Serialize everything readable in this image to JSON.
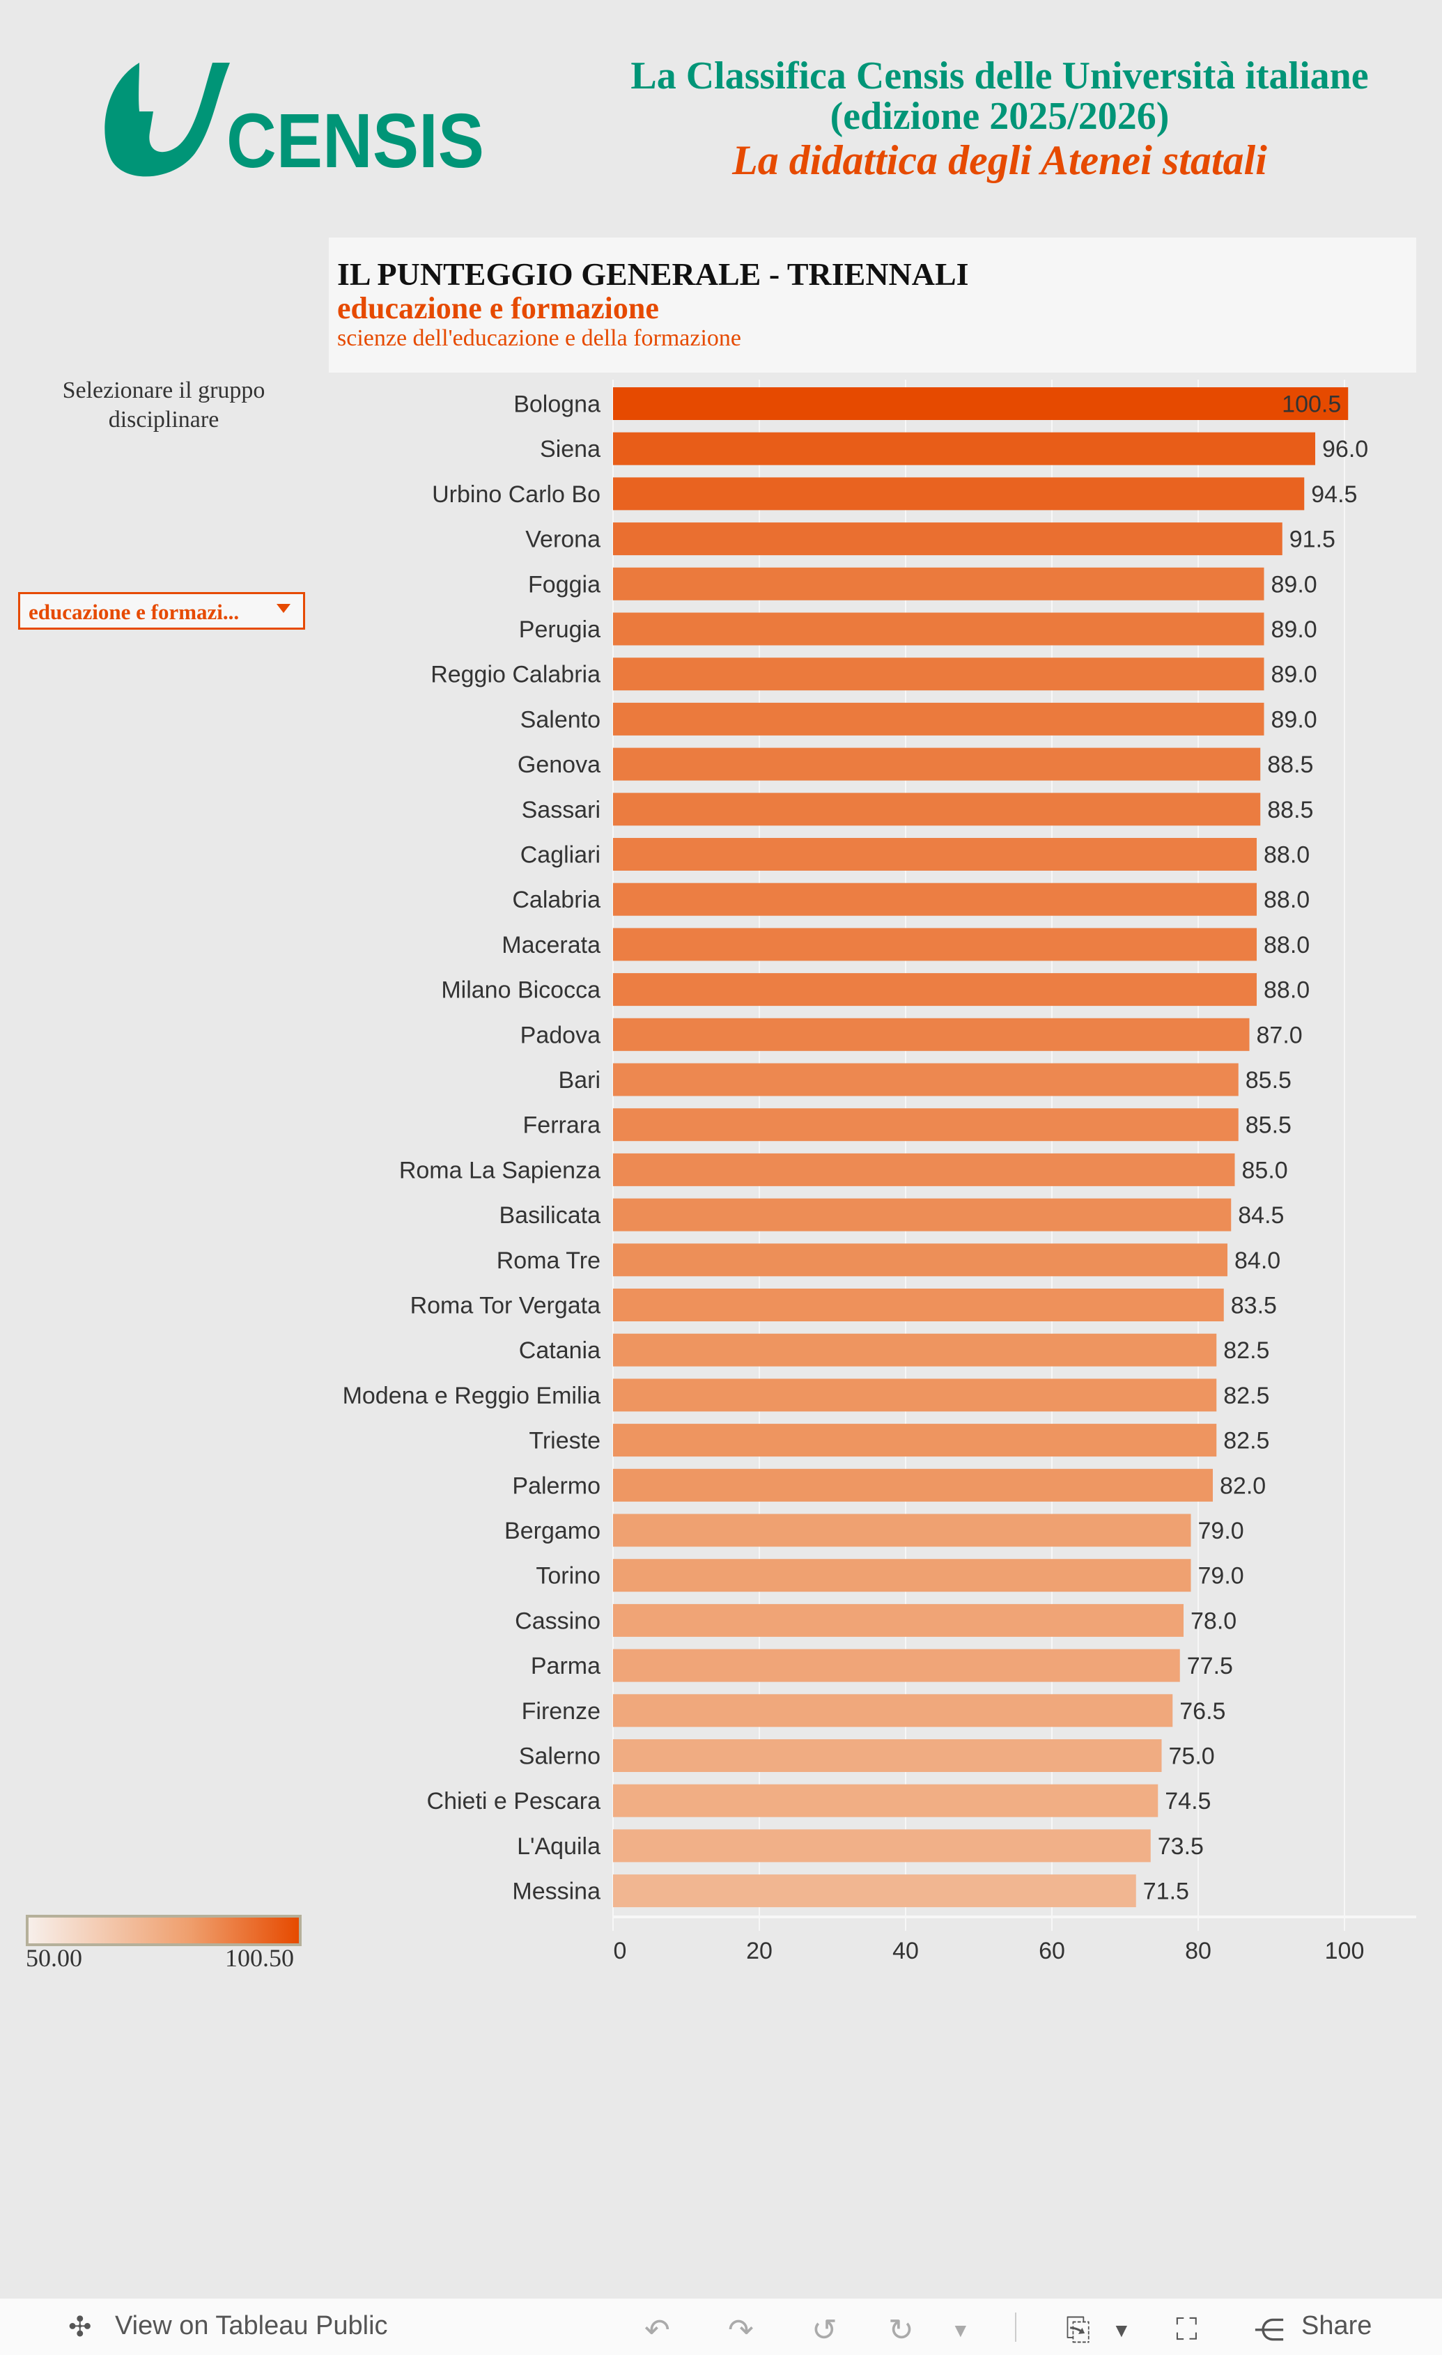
{
  "header": {
    "logo_text": "CENSIS",
    "title_line1": "La Classifica Censis delle Università italiane",
    "title_line2": "(edizione 2025/2026)",
    "subtitle": "La didattica degli Atenei statali"
  },
  "chart_header": {
    "title": "IL PUNTEGGIO GENERALE - TRIENNALI",
    "group": "educazione e formazione",
    "class": "scienze dell'educazione e della formazione"
  },
  "filter": {
    "label": "Selezionare il gruppo disciplinare",
    "selected": "educazione e formazi..."
  },
  "legend": {
    "min_label": "50.00",
    "max_label": "100.50",
    "min": 50,
    "max": 100.5,
    "color_low": "#f7efea",
    "color_high": "#e64a00"
  },
  "colors": {
    "teal": "#009577",
    "orange": "#e64a00"
  },
  "chart_data": {
    "type": "bar",
    "orientation": "horizontal",
    "categories": [
      "Bologna",
      "Siena",
      "Urbino Carlo Bo",
      "Verona",
      "Foggia",
      "Perugia",
      "Reggio Calabria",
      "Salento",
      "Genova",
      "Sassari",
      "Cagliari",
      "Calabria",
      "Macerata",
      "Milano Bicocca",
      "Padova",
      "Bari",
      "Ferrara",
      "Roma La Sapienza",
      "Basilicata",
      "Roma Tre",
      "Roma Tor Vergata",
      "Catania",
      "Modena e Reggio Emilia",
      "Trieste",
      "Palermo",
      "Bergamo",
      "Torino",
      "Cassino",
      "Parma",
      "Firenze",
      "Salerno",
      "Chieti e Pescara",
      "L'Aquila",
      "Messina"
    ],
    "values": [
      100.5,
      96.0,
      94.5,
      91.5,
      89.0,
      89.0,
      89.0,
      89.0,
      88.5,
      88.5,
      88.0,
      88.0,
      88.0,
      88.0,
      87.0,
      85.5,
      85.5,
      85.0,
      84.5,
      84.0,
      83.5,
      82.5,
      82.5,
      82.5,
      82.0,
      79.0,
      79.0,
      78.0,
      77.5,
      76.5,
      75.0,
      74.5,
      73.5,
      71.5
    ],
    "xlim": [
      0,
      110
    ],
    "xticks": [
      "0",
      "20",
      "40",
      "60",
      "80",
      "100"
    ],
    "grid": true
  },
  "footer": {
    "view_label": "View on Tableau Public",
    "share_label": "Share"
  }
}
